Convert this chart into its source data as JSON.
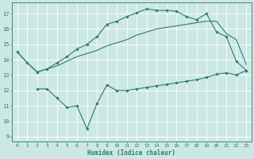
{
  "bg_color": "#cce8e5",
  "grid_color": "#ffffff",
  "line_color": "#2d7a72",
  "xlabel": "Humidex (Indice chaleur)",
  "xlim": [
    -0.5,
    23.5
  ],
  "ylim": [
    8.7,
    17.7
  ],
  "yticks": [
    9,
    10,
    11,
    12,
    13,
    14,
    15,
    16,
    17
  ],
  "xticks": [
    0,
    1,
    2,
    3,
    4,
    5,
    6,
    7,
    8,
    9,
    10,
    11,
    12,
    13,
    14,
    15,
    16,
    17,
    18,
    19,
    20,
    21,
    22,
    23
  ],
  "curve1_x": [
    0,
    1,
    2,
    3,
    4,
    5,
    6,
    7,
    8,
    9,
    10,
    11,
    12,
    13,
    14,
    15,
    16,
    17,
    18,
    19,
    20,
    21,
    22,
    23
  ],
  "curve1_y": [
    14.5,
    13.8,
    13.2,
    13.4,
    13.6,
    13.9,
    14.2,
    14.4,
    14.6,
    14.9,
    15.1,
    15.3,
    15.6,
    15.8,
    16.0,
    16.1,
    16.2,
    16.3,
    16.4,
    16.5,
    16.5,
    15.7,
    15.3,
    13.7
  ],
  "curve2_x": [
    0,
    1,
    2,
    3,
    4,
    5,
    6,
    7,
    8,
    9,
    10,
    11,
    12,
    13,
    14,
    15,
    16,
    17,
    18,
    19,
    20,
    21,
    22,
    23
  ],
  "curve2_y": [
    14.5,
    13.8,
    13.2,
    13.4,
    13.8,
    14.2,
    14.7,
    15.0,
    15.5,
    16.3,
    16.5,
    16.8,
    17.05,
    17.3,
    17.2,
    17.2,
    17.15,
    16.8,
    16.6,
    17.0,
    15.8,
    15.5,
    13.9,
    13.3
  ],
  "curve3_x": [
    2,
    3,
    4,
    5,
    6,
    7,
    8,
    9,
    10,
    11,
    12,
    13,
    14,
    15,
    16,
    17,
    18,
    19,
    20,
    21,
    22,
    23
  ],
  "curve3_y": [
    12.1,
    12.1,
    11.5,
    10.9,
    11.0,
    9.5,
    11.15,
    12.35,
    12.0,
    12.0,
    12.1,
    12.2,
    12.3,
    12.4,
    12.5,
    12.6,
    12.7,
    12.85,
    13.05,
    13.15,
    13.0,
    13.3
  ]
}
